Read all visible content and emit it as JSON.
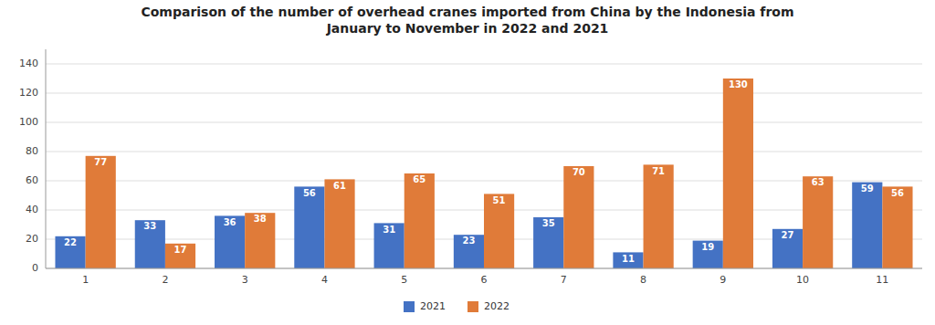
{
  "chart_data": {
    "type": "bar",
    "title": "Comparison of the number of overhead cranes imported from China by the Indonesia from\nJanuary to November in 2022 and 2021",
    "categories": [
      1,
      2,
      3,
      4,
      5,
      6,
      7,
      8,
      9,
      10,
      11
    ],
    "series": [
      {
        "name": "2021",
        "color": "#4472C4",
        "values": [
          22,
          33,
          36,
          56,
          31,
          23,
          35,
          11,
          19,
          27,
          59
        ]
      },
      {
        "name": "2022",
        "color": "#E07B39",
        "values": [
          77,
          17,
          38,
          61,
          65,
          51,
          70,
          71,
          130,
          63,
          56
        ]
      }
    ],
    "ylim": [
      0,
      150
    ],
    "yticks": [
      0,
      20,
      40,
      60,
      80,
      100,
      120,
      140
    ],
    "grid": true,
    "legend": "bottom",
    "data_labels": true
  }
}
